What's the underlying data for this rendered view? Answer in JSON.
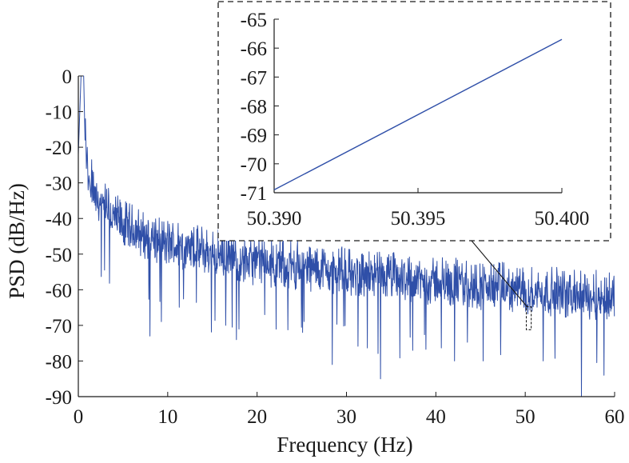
{
  "chart_data": [
    {
      "type": "line",
      "xlabel": "Frequency (Hz)",
      "ylabel": "PSD (dB/Hz)",
      "xlim": [
        0,
        60
      ],
      "ylim": [
        -90,
        0
      ],
      "xticks": [
        0,
        10,
        20,
        30,
        40,
        50,
        60
      ],
      "yticks": [
        0,
        -10,
        -20,
        -30,
        -40,
        -50,
        -60,
        -70,
        -80,
        -90
      ],
      "grid": false,
      "series": [
        {
          "color": "#2f4fa8",
          "trend": [
            {
              "x": 0.0,
              "y": -22
            },
            {
              "x": 0.3,
              "y": 0
            },
            {
              "x": 0.6,
              "y": 0
            },
            {
              "x": 0.75,
              "y": -18
            },
            {
              "x": 1.2,
              "y": -30
            },
            {
              "x": 2,
              "y": -37
            },
            {
              "x": 5,
              "y": -44
            },
            {
              "x": 10,
              "y": -49
            },
            {
              "x": 20,
              "y": -54
            },
            {
              "x": 30,
              "y": -57
            },
            {
              "x": 40,
              "y": -59.5
            },
            {
              "x": 50,
              "y": -62
            },
            {
              "x": 60,
              "y": -64
            }
          ],
          "noise_band_db": 14,
          "dips": [
            {
              "x": 8.0,
              "y": -73
            },
            {
              "x": 16.5,
              "y": -70
            },
            {
              "x": 17.7,
              "y": -74
            },
            {
              "x": 25.1,
              "y": -72
            },
            {
              "x": 28.4,
              "y": -81
            },
            {
              "x": 33.8,
              "y": -85
            },
            {
              "x": 37.4,
              "y": -77
            },
            {
              "x": 42.1,
              "y": -80
            },
            {
              "x": 45.3,
              "y": -80
            },
            {
              "x": 52.0,
              "y": -80
            },
            {
              "x": 56.3,
              "y": -90
            },
            {
              "x": 58.8,
              "y": -84
            }
          ]
        }
      ],
      "zoom_region": {
        "x": [
          50.39,
          50.4
        ],
        "y": [
          -71,
          -65
        ]
      }
    },
    {
      "type": "line",
      "xlim": [
        50.39,
        50.4
      ],
      "ylim": [
        -71,
        -65
      ],
      "xticks": [
        50.39,
        50.395,
        50.4
      ],
      "xtick_labels": [
        "50.390",
        "50.395",
        "50.400"
      ],
      "yticks": [
        -65,
        -66,
        -67,
        -68,
        -69,
        -70,
        -71
      ],
      "grid": false,
      "series": [
        {
          "color": "#2f4fa8",
          "x": [
            50.39,
            50.4
          ],
          "y": [
            -70.9,
            -65.7
          ]
        }
      ]
    }
  ]
}
